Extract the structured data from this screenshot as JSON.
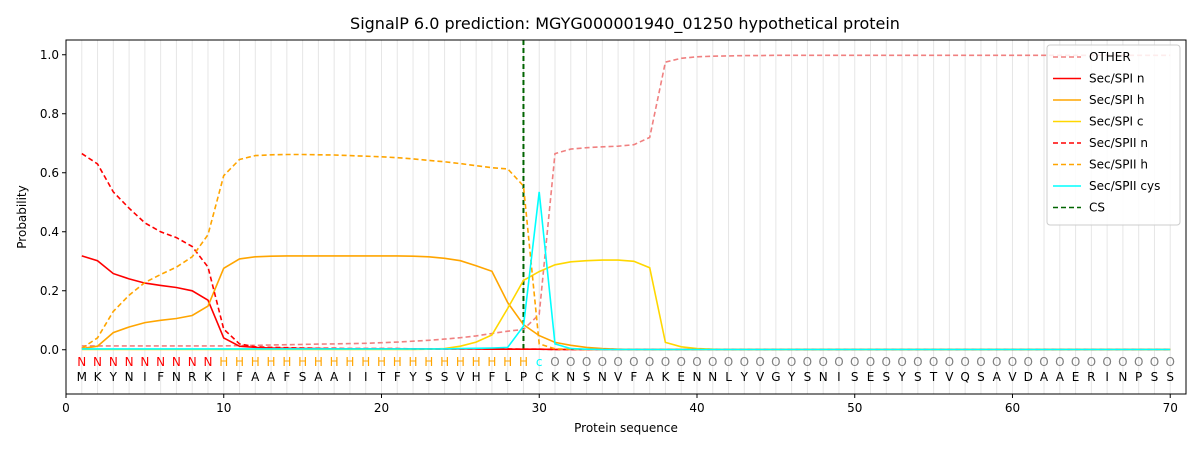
{
  "chart_data": {
    "type": "line",
    "title": "SignalP 6.0 prediction: MGYG000001940_01250 hypothetical protein",
    "xlabel": "Protein sequence",
    "ylabel": "Probability",
    "xlim": [
      0,
      71
    ],
    "ylim": [
      -0.15,
      1.05
    ],
    "xticks": [
      0,
      10,
      20,
      30,
      40,
      50,
      60,
      70
    ],
    "yticks": [
      0.0,
      0.2,
      0.4,
      0.6,
      0.8,
      1.0
    ],
    "ytick_labels": [
      "0.0",
      "0.2",
      "0.4",
      "0.6",
      "0.8",
      "1.0"
    ],
    "grid": "vertical lines at each residue",
    "legend_position": "top-right",
    "sequence": [
      "M",
      "K",
      "Y",
      "N",
      "I",
      "F",
      "N",
      "R",
      "K",
      "I",
      "F",
      "A",
      "A",
      "F",
      "S",
      "A",
      "A",
      "I",
      "I",
      "T",
      "F",
      "Y",
      "S",
      "S",
      "V",
      "H",
      "F",
      "L",
      "P",
      "C",
      "K",
      "N",
      "S",
      "N",
      "V",
      "F",
      "A",
      "K",
      "E",
      "N",
      "N",
      "L",
      "Y",
      "V",
      "G",
      "Y",
      "S",
      "N",
      "I",
      "S",
      "E",
      "S",
      "Y",
      "S",
      "T",
      "V",
      "Q",
      "S",
      "A",
      "V",
      "D",
      "A",
      "A",
      "E",
      "R",
      "I",
      "N",
      "P",
      "S",
      "S"
    ],
    "predicted_labels": [
      "N",
      "N",
      "N",
      "N",
      "N",
      "N",
      "N",
      "N",
      "N",
      "H",
      "H",
      "H",
      "H",
      "H",
      "H",
      "H",
      "H",
      "H",
      "H",
      "H",
      "H",
      "H",
      "H",
      "H",
      "H",
      "H",
      "H",
      "H",
      "H",
      "c",
      "O",
      "O",
      "O",
      "O",
      "O",
      "O",
      "O",
      "O",
      "O",
      "O",
      "O",
      "O",
      "O",
      "O",
      "O",
      "O",
      "O",
      "O",
      "O",
      "O",
      "O",
      "O",
      "O",
      "O",
      "O",
      "O",
      "O",
      "O",
      "O",
      "O",
      "O",
      "O",
      "O",
      "O",
      "O",
      "O",
      "O",
      "O",
      "O",
      "O"
    ],
    "label_colors": {
      "N": "#ff0000",
      "H": "#ffa500",
      "c": "#00ffff",
      "O": "#808080"
    },
    "cs_position": 29,
    "series": [
      {
        "name": "OTHER",
        "color": "#f08080",
        "dash": "dashed",
        "values": [
          0.013,
          0.013,
          0.013,
          0.013,
          0.013,
          0.013,
          0.013,
          0.013,
          0.013,
          0.013,
          0.014,
          0.015,
          0.016,
          0.017,
          0.018,
          0.019,
          0.02,
          0.021,
          0.022,
          0.024,
          0.026,
          0.029,
          0.032,
          0.036,
          0.041,
          0.047,
          0.055,
          0.063,
          0.069,
          0.12,
          0.665,
          0.68,
          0.685,
          0.688,
          0.69,
          0.695,
          0.72,
          0.975,
          0.988,
          0.993,
          0.995,
          0.996,
          0.997,
          0.997,
          0.998,
          0.998,
          0.998,
          0.998,
          0.998,
          0.998,
          0.998,
          0.998,
          0.998,
          0.998,
          0.998,
          0.998,
          0.998,
          0.998,
          0.998,
          0.998,
          0.998,
          0.998,
          0.998,
          0.998,
          0.998,
          0.998,
          0.998,
          0.998,
          0.998,
          0.998
        ]
      },
      {
        "name": "Sec/SPI n",
        "color": "#ff0000",
        "dash": "solid",
        "values": [
          0.318,
          0.302,
          0.258,
          0.24,
          0.226,
          0.218,
          0.211,
          0.2,
          0.168,
          0.04,
          0.012,
          0.008,
          0.006,
          0.005,
          0.004,
          0.004,
          0.003,
          0.003,
          0.003,
          0.003,
          0.003,
          0.003,
          0.003,
          0.003,
          0.003,
          0.003,
          0.002,
          0.002,
          0.002,
          0.002,
          0.001,
          0.001,
          0.001,
          0.001,
          0.001,
          0.001,
          0.001,
          0.001,
          0.001,
          0.001,
          0.001,
          0.001,
          0.001,
          0.001,
          0.001,
          0.001,
          0.001,
          0.001,
          0.001,
          0.001,
          0.001,
          0.001,
          0.001,
          0.001,
          0.001,
          0.001,
          0.001,
          0.001,
          0.001,
          0.001,
          0.001,
          0.001,
          0.001,
          0.001,
          0.001,
          0.001,
          0.001,
          0.001,
          0.001,
          0.001
        ]
      },
      {
        "name": "Sec/SPI h",
        "color": "#ffa500",
        "dash": "solid",
        "values": [
          0.004,
          0.012,
          0.058,
          0.077,
          0.092,
          0.1,
          0.106,
          0.116,
          0.148,
          0.276,
          0.308,
          0.315,
          0.317,
          0.318,
          0.318,
          0.318,
          0.318,
          0.318,
          0.318,
          0.318,
          0.318,
          0.317,
          0.315,
          0.31,
          0.302,
          0.285,
          0.266,
          0.16,
          0.085,
          0.048,
          0.025,
          0.015,
          0.008,
          0.004,
          0.002,
          0.001,
          0.001,
          0.001,
          0.001,
          0.001,
          0.001,
          0.001,
          0.001,
          0.001,
          0.001,
          0.001,
          0.001,
          0.001,
          0.001,
          0.001,
          0.001,
          0.001,
          0.001,
          0.001,
          0.001,
          0.001,
          0.001,
          0.001,
          0.001,
          0.001,
          0.001,
          0.001,
          0.001,
          0.001,
          0.001,
          0.001,
          0.001,
          0.001,
          0.001,
          0.001
        ]
      },
      {
        "name": "Sec/SPI c",
        "color": "#ffd700",
        "dash": "solid",
        "values": [
          0.001,
          0.001,
          0.001,
          0.001,
          0.001,
          0.001,
          0.001,
          0.001,
          0.001,
          0.001,
          0.001,
          0.001,
          0.001,
          0.001,
          0.001,
          0.001,
          0.001,
          0.001,
          0.001,
          0.001,
          0.001,
          0.001,
          0.002,
          0.004,
          0.012,
          0.026,
          0.05,
          0.14,
          0.235,
          0.265,
          0.288,
          0.298,
          0.302,
          0.304,
          0.304,
          0.3,
          0.278,
          0.025,
          0.01,
          0.004,
          0.002,
          0.001,
          0.001,
          0.001,
          0.001,
          0.001,
          0.001,
          0.001,
          0.001,
          0.001,
          0.001,
          0.001,
          0.001,
          0.001,
          0.001,
          0.001,
          0.001,
          0.001,
          0.001,
          0.001,
          0.001,
          0.001,
          0.001,
          0.001,
          0.001,
          0.001,
          0.001,
          0.001,
          0.001,
          0.001
        ]
      },
      {
        "name": "Sec/SPII n",
        "color": "#ff0000",
        "dash": "dashed",
        "values": [
          0.665,
          0.63,
          0.535,
          0.48,
          0.43,
          0.4,
          0.38,
          0.35,
          0.28,
          0.07,
          0.02,
          0.01,
          0.008,
          0.007,
          0.006,
          0.005,
          0.005,
          0.004,
          0.004,
          0.004,
          0.004,
          0.003,
          0.003,
          0.003,
          0.003,
          0.003,
          0.003,
          0.003,
          0.002,
          0.002,
          0.001,
          0.001,
          0.001,
          0.001,
          0.001,
          0.001,
          0.001,
          0.001,
          0.001,
          0.001,
          0.001,
          0.001,
          0.001,
          0.001,
          0.001,
          0.001,
          0.001,
          0.001,
          0.001,
          0.001,
          0.001,
          0.001,
          0.001,
          0.001,
          0.001,
          0.001,
          0.001,
          0.001,
          0.001,
          0.001,
          0.001,
          0.001,
          0.001,
          0.001,
          0.001,
          0.001,
          0.001,
          0.001,
          0.001,
          0.001
        ]
      },
      {
        "name": "Sec/SPII h",
        "color": "#ffa500",
        "dash": "dashed",
        "values": [
          0.005,
          0.04,
          0.13,
          0.185,
          0.228,
          0.255,
          0.28,
          0.315,
          0.39,
          0.59,
          0.645,
          0.658,
          0.661,
          0.662,
          0.662,
          0.661,
          0.66,
          0.658,
          0.656,
          0.654,
          0.651,
          0.647,
          0.642,
          0.637,
          0.631,
          0.624,
          0.617,
          0.613,
          0.555,
          0.02,
          0.003,
          0.002,
          0.001,
          0.001,
          0.001,
          0.001,
          0.001,
          0.001,
          0.001,
          0.001,
          0.001,
          0.001,
          0.001,
          0.001,
          0.001,
          0.001,
          0.001,
          0.001,
          0.001,
          0.001,
          0.001,
          0.001,
          0.001,
          0.001,
          0.001,
          0.001,
          0.001,
          0.001,
          0.001,
          0.001,
          0.001,
          0.001,
          0.001,
          0.001,
          0.001,
          0.001,
          0.001,
          0.001,
          0.001,
          0.001
        ]
      },
      {
        "name": "Sec/SPII cys",
        "color": "#00ffff",
        "dash": "solid",
        "values": [
          0.003,
          0.003,
          0.003,
          0.003,
          0.003,
          0.003,
          0.003,
          0.003,
          0.003,
          0.003,
          0.003,
          0.003,
          0.003,
          0.003,
          0.003,
          0.003,
          0.003,
          0.003,
          0.003,
          0.003,
          0.003,
          0.003,
          0.003,
          0.003,
          0.004,
          0.005,
          0.006,
          0.008,
          0.08,
          0.535,
          0.02,
          0.004,
          0.002,
          0.001,
          0.001,
          0.001,
          0.001,
          0.001,
          0.001,
          0.001,
          0.001,
          0.001,
          0.001,
          0.001,
          0.001,
          0.001,
          0.001,
          0.001,
          0.001,
          0.001,
          0.001,
          0.001,
          0.001,
          0.001,
          0.001,
          0.001,
          0.001,
          0.001,
          0.001,
          0.001,
          0.001,
          0.001,
          0.001,
          0.001,
          0.001,
          0.001,
          0.001,
          0.001,
          0.001,
          0.001
        ]
      }
    ],
    "cs_legend": {
      "name": "CS",
      "color": "#006400",
      "dash": "dashed"
    }
  }
}
